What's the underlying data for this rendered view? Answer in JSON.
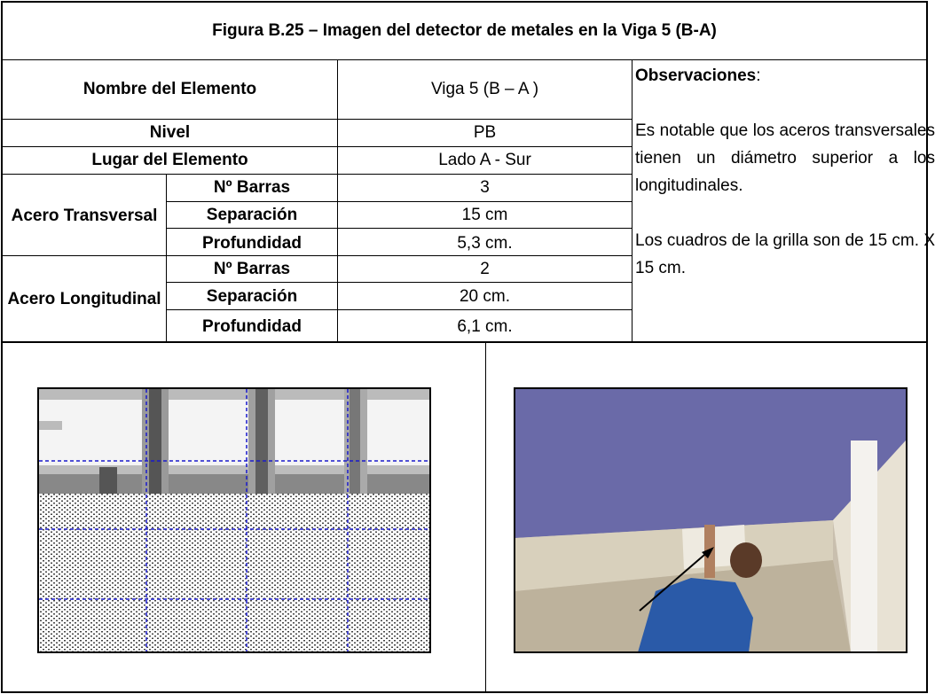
{
  "header": {
    "title": "Figura B.25 – Imagen del detector de metales en la Viga 5 (B-A)"
  },
  "table": {
    "rows": [
      [
        "Nombre del Elemento",
        "Viga 5 (B – A )"
      ],
      [
        "Nivel",
        "PB"
      ],
      [
        "Lugar del Elemento",
        "Lado A - Sur"
      ]
    ],
    "groups": [
      {
        "label": "Acero Transversal",
        "rows": [
          [
            "Nº  Barras",
            "3"
          ],
          [
            "Separación",
            "15 cm"
          ],
          [
            "Profundidad",
            "5,3 cm."
          ]
        ]
      },
      {
        "label": "Acero Longitudinal",
        "rows": [
          [
            "Nº  Barras",
            "2"
          ],
          [
            "Separación",
            "20 cm."
          ],
          [
            "Profundidad",
            "6,1 cm."
          ]
        ]
      }
    ]
  },
  "observations": {
    "heading": "Observaciones",
    "heading_punct": ":",
    "paragraphs": [
      "Es notable que los aceros transversales tienen un diámetro superior a los longitudinales.",
      "Los cuadros de la grilla son de 15 cm. X 15 cm."
    ]
  }
}
